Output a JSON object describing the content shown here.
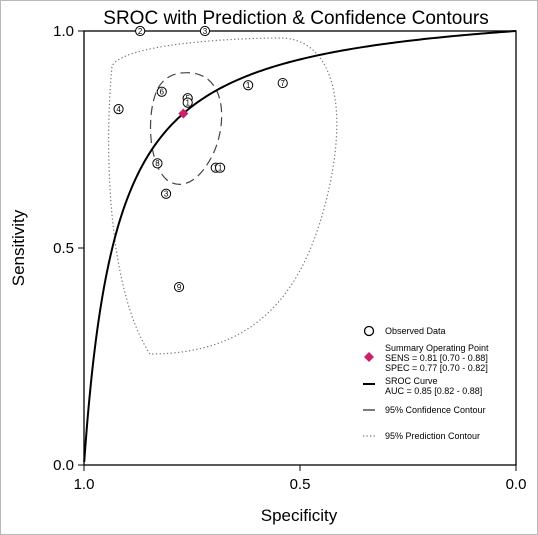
{
  "chart_data": {
    "type": "scatter",
    "title": "SROC with Prediction & Confidence Contours",
    "xlabel": "Specificity",
    "ylabel": "Sensitivity",
    "xlim": [
      1.0,
      0.0
    ],
    "ylim": [
      0.0,
      1.0
    ],
    "x_reversed": true,
    "x_ticks": [
      "1.0",
      "0.5",
      "0.0"
    ],
    "y_ticks": [
      "0.0",
      "0.5",
      "1.0"
    ],
    "grid": false,
    "legend_position": "bottom-right",
    "accent_color": "#cc1f6a",
    "observed_points": [
      {
        "label": "2",
        "specificity": 0.87,
        "sensitivity": 1.0
      },
      {
        "label": "3",
        "specificity": 0.72,
        "sensitivity": 1.0
      },
      {
        "label": "1",
        "specificity": 0.62,
        "sensitivity": 0.875
      },
      {
        "label": "7",
        "specificity": 0.54,
        "sensitivity": 0.88
      },
      {
        "label": "4",
        "specificity": 0.92,
        "sensitivity": 0.82
      },
      {
        "label": "6",
        "specificity": 0.82,
        "sensitivity": 0.86
      },
      {
        "label": "5",
        "specificity": 0.76,
        "sensitivity": 0.845
      },
      {
        "label": "1",
        "specificity": 0.76,
        "sensitivity": 0.835
      },
      {
        "label": "8",
        "specificity": 0.83,
        "sensitivity": 0.695
      },
      {
        "label": "1",
        "specificity": 0.695,
        "sensitivity": 0.685
      },
      {
        "label": "1",
        "specificity": 0.685,
        "sensitivity": 0.685
      },
      {
        "label": "3",
        "specificity": 0.81,
        "sensitivity": 0.625
      },
      {
        "label": "9",
        "specificity": 0.78,
        "sensitivity": 0.41
      }
    ],
    "summary_point": {
      "specificity": 0.77,
      "sensitivity": 0.81
    },
    "legend": [
      {
        "key": "observed",
        "lines": [
          "Observed Data"
        ]
      },
      {
        "key": "summary",
        "lines": [
          "Summary Operating Point",
          "SENS = 0.81 [0.70 - 0.88]",
          "SPEC = 0.77 [0.70 - 0.82]"
        ]
      },
      {
        "key": "sroc",
        "lines": [
          "SROC Curve",
          "AUC = 0.85 [0.82 - 0.88]"
        ]
      },
      {
        "key": "confidence",
        "lines": [
          "95% Confidence Contour"
        ]
      },
      {
        "key": "prediction",
        "lines": [
          "95% Prediction Contour"
        ]
      }
    ]
  }
}
